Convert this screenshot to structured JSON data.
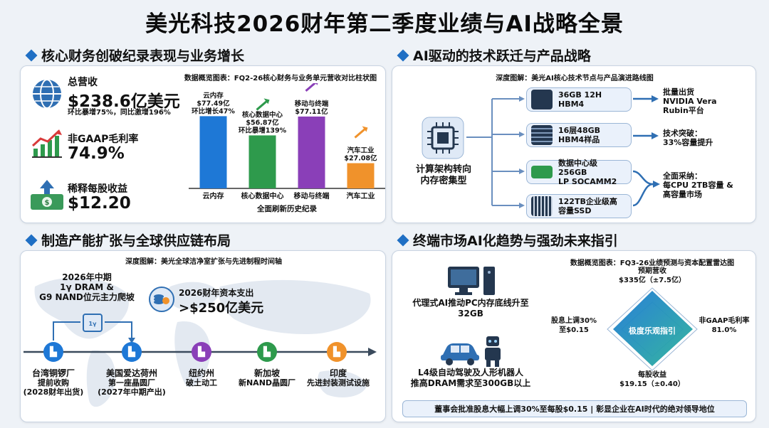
{
  "title": "美光科技2026财年第二季度业绩与AI战略全景",
  "sections": {
    "s1": "核心财务创破纪录表现与业务增长",
    "s2": "AI驱动的技术跃迁与产品战略",
    "s3": "制造产能扩张与全球供应链布局",
    "s4": "终端市场AI化趋势与强劲未来指引"
  },
  "finance": {
    "revenue_label": "总营收",
    "revenue_value": "$238.6亿美元",
    "revenue_sub": "环比暴增75%，同比激增196%",
    "margin_label": "非GAAP毛利率",
    "margin_value": "74.9%",
    "eps_label": "稀释每股收益",
    "eps_value": "$12.20",
    "icons": [
      "globe-icon",
      "growth-chart-icon",
      "money-up-icon"
    ]
  },
  "chart_caption": "数据概览图表：FQ2-26核心财务与业务单元营收对比柱状图",
  "chart_footer": "全面刷新历史纪录",
  "chart_data": {
    "type": "bar",
    "categories": [
      "云内存",
      "核心数据中心",
      "移动与终端",
      "汽车工业"
    ],
    "values": [
      77.49,
      56.87,
      77.11,
      27.08
    ],
    "colors": [
      "#1e78d6",
      "#2e9a4c",
      "#8a3fb8",
      "#f0922b"
    ],
    "labels": [
      [
        "云内存",
        "$77.49亿",
        "环比增长47%"
      ],
      [
        "核心数据中心",
        "$56.87亿",
        "环比暴增139%"
      ],
      [
        "移动与终端",
        "$77.11亿"
      ],
      [
        "汽车工业",
        "$27.08亿"
      ]
    ],
    "ylim": [
      0,
      90
    ]
  },
  "tech": {
    "caption": "深度图解：美光AI核心技术节点与产品演进路线图",
    "center": "计算架构转向\n内存密集型",
    "nodes": [
      "36GB 12H\nHBM4",
      "16层48GB\nHBM4样品",
      "数据中心级 256GB\nLP SOCAMM2",
      "122TB企业级高\n容量SSD"
    ],
    "results": [
      "批量出货\nNVIDIA Vera\nRubin平台",
      "技术突破：\n33%容量提升",
      "全面采纳：\n每CPU 2TB容量 &\n高容量市场"
    ]
  },
  "mfg": {
    "caption": "深度图解：美光全球洁净室扩张与先进制程时间轴",
    "mid2026": "2026年中期\n1γ DRAM &\nG9 NAND位元主力爬坡",
    "capex_label": "2026财年资本支出",
    "capex_value": ">$250亿美元",
    "locations": [
      {
        "name": "台湾铜锣厂",
        "desc": "提前收购\n(2028财年出货)"
      },
      {
        "name": "美国爱达荷州",
        "desc": "第一座晶圆厂\n(2027年中期产出)"
      },
      {
        "name": "纽约州",
        "desc": "破土动工"
      },
      {
        "name": "新加坡",
        "desc": "新NAND晶圆厂"
      },
      {
        "name": "印度",
        "desc": "先进封装测试设施"
      }
    ]
  },
  "market": {
    "pc": "代理式AI推动PC内存底线升至\n32GB",
    "auto": "L4级自动驾驶及人形机器人\n推高DRAM需求至300GB以上",
    "radar_caption": "数据概览图表：FQ3-26业绩预测与资本配置雷达图",
    "radar_center": "极度乐观指引",
    "radar_top": "预期营收\n$335亿（±7.5亿）",
    "radar_left": "股息上调30%\n至$0.15",
    "radar_right": "非GAAP毛利率\n81.0%",
    "radar_bottom": "每股收益\n$19.15（±0.40）",
    "footer": "董事会批准股息大幅上调30%至每股$0.15 | 彰显企业在AI时代的绝对领导地位"
  }
}
